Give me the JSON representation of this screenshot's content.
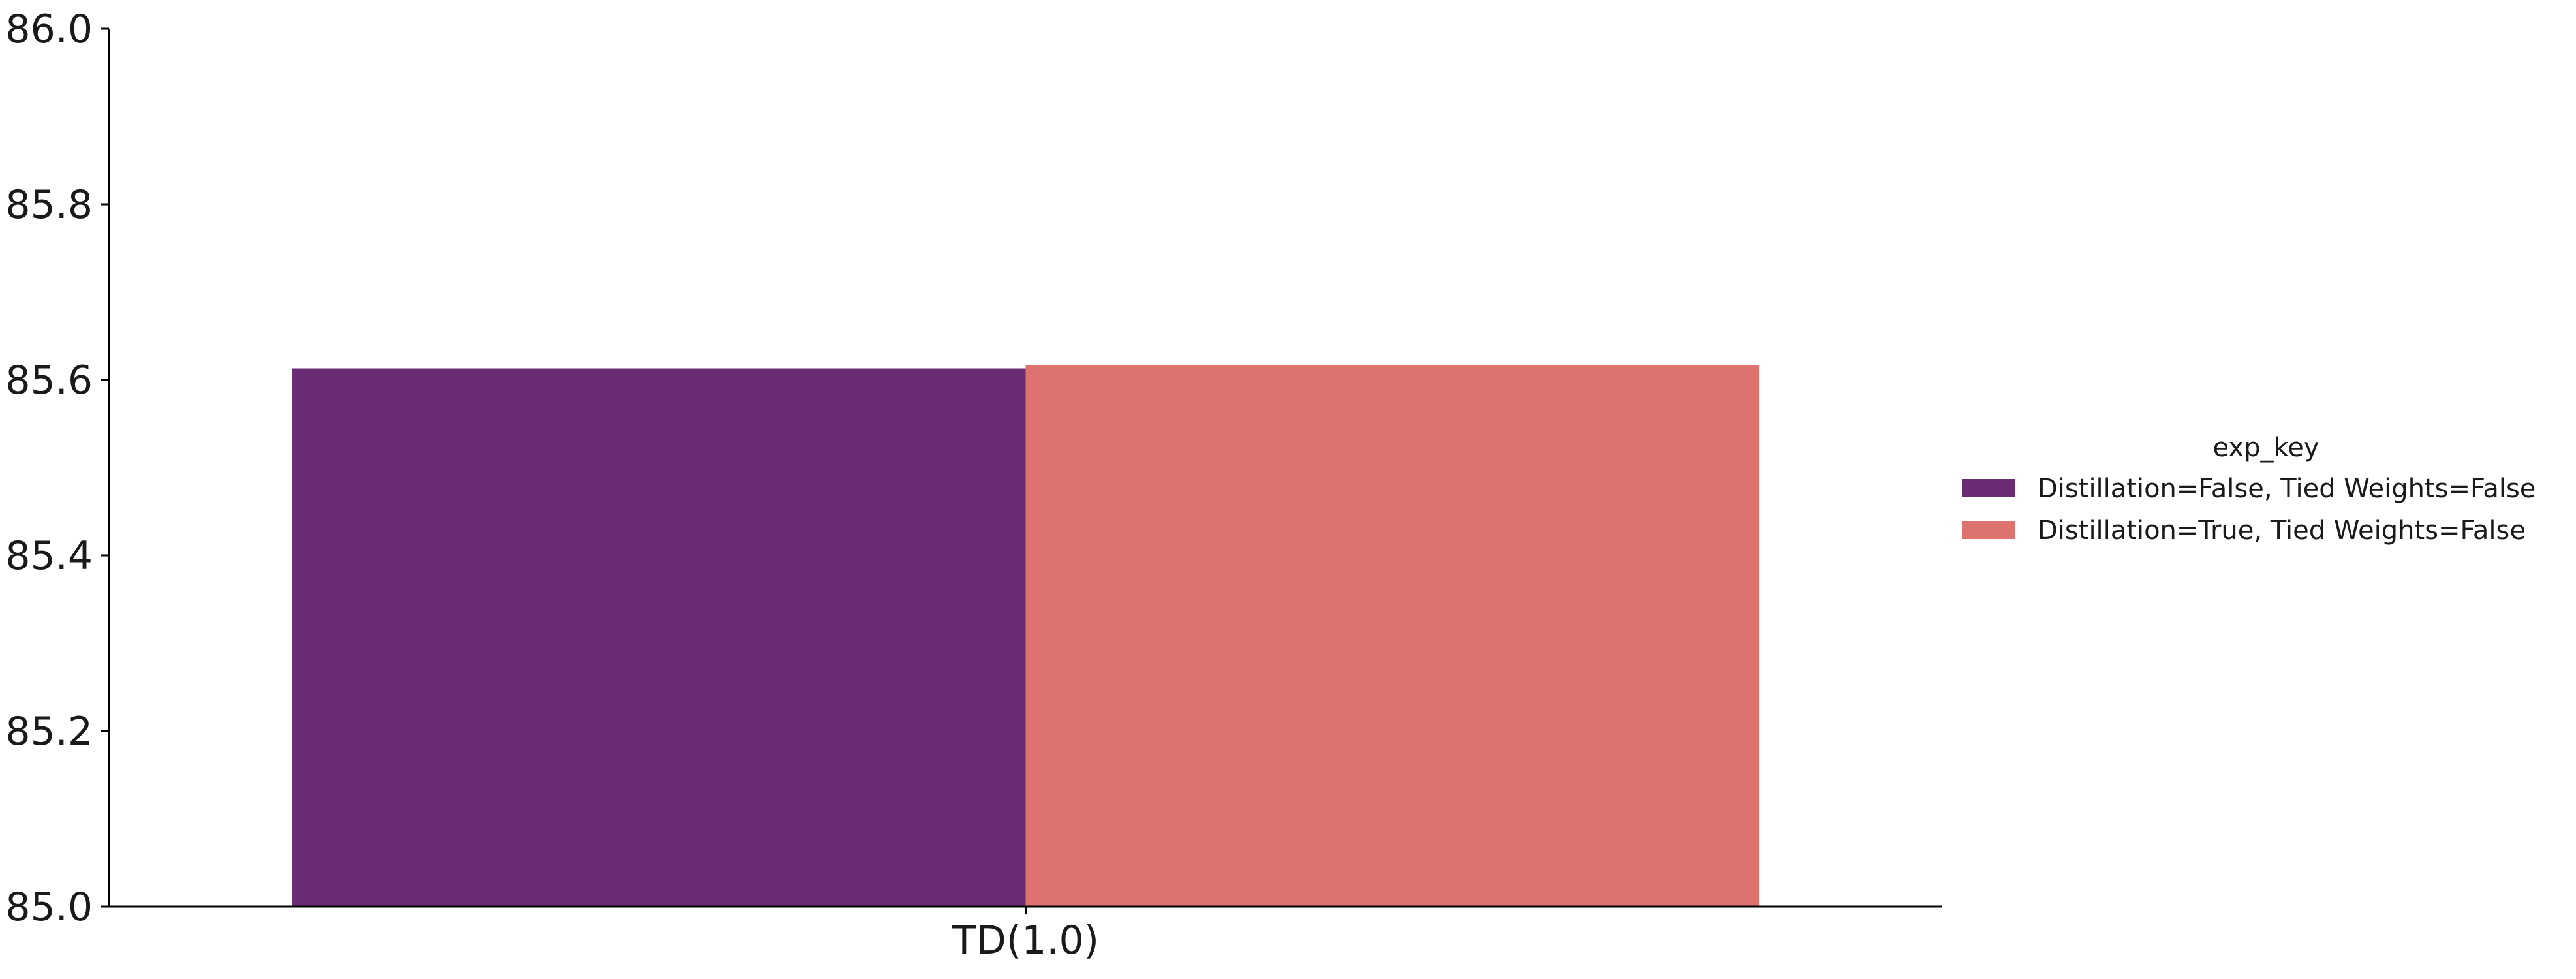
{
  "chart_data": {
    "type": "bar",
    "categories": [
      "TD(1.0)"
    ],
    "series": [
      {
        "name": "Distillation=False, Tied Weights=False",
        "values": [
          85.613
        ],
        "color": "#6a2c75"
      },
      {
        "name": "Distillation=True, Tied Weights=False",
        "values": [
          85.617
        ],
        "color": "#de726f"
      }
    ],
    "title": "",
    "xlabel": "",
    "ylabel": "",
    "ylim": [
      85.0,
      86.0
    ],
    "yticks": [
      85.0,
      85.2,
      85.4,
      85.6,
      85.8,
      86.0
    ],
    "ytick_labels": [
      "85.0",
      "85.2",
      "85.4",
      "85.6",
      "85.8",
      "86.0"
    ],
    "grid": false,
    "legend": {
      "title": "exp_key",
      "placement": "right"
    }
  }
}
